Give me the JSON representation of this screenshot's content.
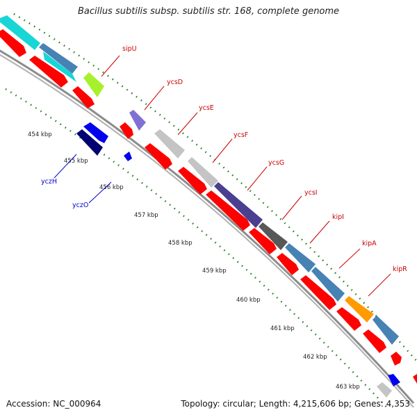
{
  "header": {
    "title": "Bacillus subtilis subsp. subtilis str. 168, complete genome"
  },
  "footer": {
    "accession": "Accession: NC_000964",
    "topology": "Topology: circular; Length: 4,215,606 bp; Genes: 4,353"
  },
  "colors": {
    "backbone": "#8c8c8c",
    "cds": "#ff0000",
    "dots": "#1a7a1a",
    "forward_label": "#cc0000",
    "reverse_label": "#0000cc",
    "cog_cyan": "#18d6d6",
    "cog_lightgreen": "#a6f12b",
    "cog_lavender": "#7f70d6",
    "cog_lightgray": "#c4c4c4",
    "cog_slate": "#4b3f91",
    "cog_darkgray": "#585858",
    "cog_steelblue": "#4682b4",
    "cog_orange": "#ff9a00",
    "cog_blue": "#0000ee",
    "cog_navy": "#000070"
  },
  "kbp_ticks": [
    "454 kbp",
    "455 kbp",
    "456 kbp",
    "457 kbp",
    "458 kbp",
    "459 kbp",
    "460 kbp",
    "461 kbp",
    "462 kbp",
    "463 kbp"
  ],
  "forward_genes": [
    {
      "label": "sipU",
      "cog": "#a6f12b"
    },
    {
      "label": "ycsD",
      "cog": "#7f70d6"
    },
    {
      "label": "ycsE",
      "cog": "#c4c4c4"
    },
    {
      "label": "ycsF",
      "cog": "#c4c4c4"
    },
    {
      "label": "ycsG",
      "cog": "#4b3f91"
    },
    {
      "label": "ycsI",
      "cog": "#585858"
    },
    {
      "label": "kipI",
      "cog": "#4682b4"
    },
    {
      "label": "kipA",
      "cog": "#4682b4"
    },
    {
      "label": "kipR",
      "cog": "#ff9a00"
    }
  ],
  "reverse_genes": [
    {
      "label": "yczH",
      "cog": "#0000ee"
    },
    {
      "label": "yczO",
      "cog": "#0000ee"
    }
  ]
}
